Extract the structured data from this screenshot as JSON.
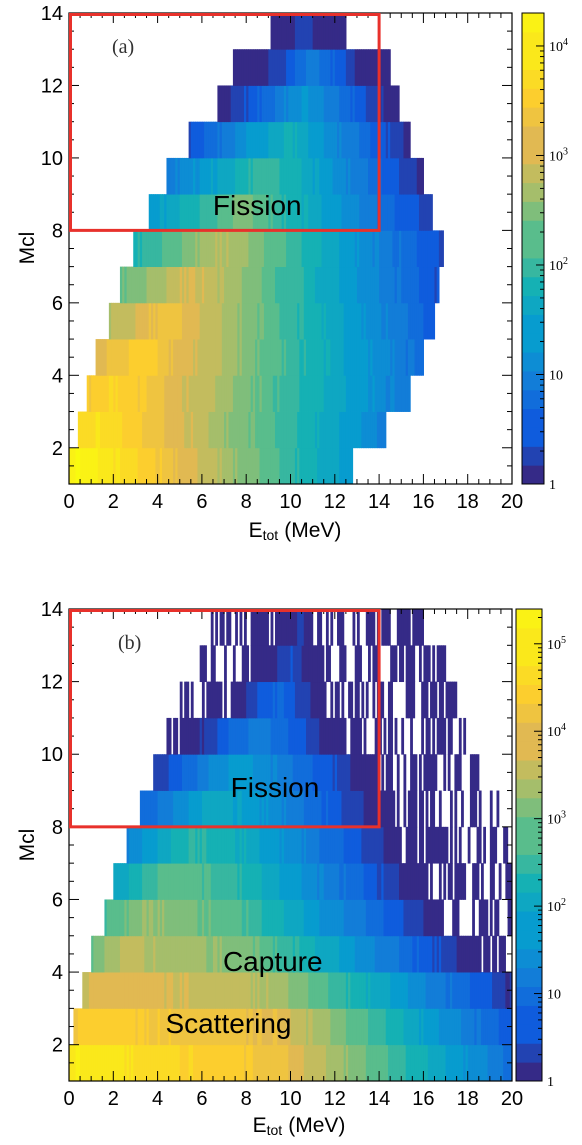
{
  "chart_data": [
    {
      "type": "heatmap",
      "panel_label": "(a)",
      "xlabel": "E",
      "xlabel_sub": "tot",
      "xlabel_unit": "(MeV)",
      "ylabel": "Mcl",
      "xlim": [
        0,
        20
      ],
      "ylim": [
        1,
        14
      ],
      "x_ticks": [
        "0",
        "2",
        "4",
        "6",
        "8",
        "10",
        "12",
        "14",
        "16",
        "18",
        "20"
      ],
      "y_ticks": [
        "2",
        "4",
        "6",
        "8",
        "10",
        "12",
        "14"
      ],
      "z_scale": "log",
      "z_range": [
        1,
        20000
      ],
      "colorbar_ticks": [
        "1",
        "10",
        "10^2",
        "10^3",
        "10^4"
      ],
      "annotations": [
        {
          "text": "Fission",
          "x": 8.5,
          "y": 8.7
        }
      ],
      "selection_box": {
        "x": [
          0,
          14
        ],
        "y": [
          8,
          14
        ],
        "color": "#e8312b"
      },
      "rows": [
        {
          "mcl": 1,
          "x_start": 0.0,
          "x_end": 12.8,
          "log_peak": 4.3,
          "peak_x": 0.4,
          "decay": 0.24
        },
        {
          "mcl": 2,
          "x_start": 0.4,
          "x_end": 14.3,
          "log_peak": 3.9,
          "peak_x": 1.2,
          "decay": 0.22
        },
        {
          "mcl": 3,
          "x_start": 0.8,
          "x_end": 15.4,
          "log_peak": 3.7,
          "peak_x": 2.0,
          "decay": 0.21
        },
        {
          "mcl": 4,
          "x_start": 1.2,
          "x_end": 16.0,
          "log_peak": 3.55,
          "peak_x": 3.2,
          "decay": 0.22
        },
        {
          "mcl": 5,
          "x_start": 1.8,
          "x_end": 16.5,
          "log_peak": 3.35,
          "peak_x": 4.3,
          "decay": 0.23
        },
        {
          "mcl": 6,
          "x_start": 2.3,
          "x_end": 16.7,
          "log_peak": 3.1,
          "peak_x": 5.5,
          "decay": 0.24
        },
        {
          "mcl": 7,
          "x_start": 2.9,
          "x_end": 16.9,
          "log_peak": 2.85,
          "peak_x": 6.8,
          "decay": 0.25
        },
        {
          "mcl": 8,
          "x_start": 3.6,
          "x_end": 16.4,
          "log_peak": 2.45,
          "peak_x": 7.8,
          "decay": 0.26
        },
        {
          "mcl": 9,
          "x_start": 4.4,
          "x_end": 16.0,
          "log_peak": 2.15,
          "peak_x": 8.8,
          "decay": 0.28
        },
        {
          "mcl": 10,
          "x_start": 5.4,
          "x_end": 15.4,
          "log_peak": 1.8,
          "peak_x": 9.8,
          "decay": 0.3
        },
        {
          "mcl": 11,
          "x_start": 6.7,
          "x_end": 14.9,
          "log_peak": 1.35,
          "peak_x": 10.6,
          "decay": 0.34
        },
        {
          "mcl": 12,
          "x_start": 7.4,
          "x_end": 14.5,
          "log_peak": 0.95,
          "peak_x": 11.0,
          "decay": 0.38
        },
        {
          "mcl": 13,
          "x_start": 9.1,
          "x_end": 12.5,
          "log_peak": 0.4,
          "peak_x": 10.5,
          "decay": 0.4
        }
      ]
    },
    {
      "type": "heatmap",
      "panel_label": "(b)",
      "xlabel": "E",
      "xlabel_sub": "tot",
      "xlabel_unit": "(MeV)",
      "ylabel": "Mcl",
      "xlim": [
        0,
        20
      ],
      "ylim": [
        1,
        14
      ],
      "x_ticks": [
        "0",
        "2",
        "4",
        "6",
        "8",
        "10",
        "12",
        "14",
        "16",
        "18",
        "20"
      ],
      "y_ticks": [
        "2",
        "4",
        "6",
        "8",
        "10",
        "12",
        "14"
      ],
      "z_scale": "log",
      "z_range": [
        1,
        250000
      ],
      "colorbar_ticks": [
        "1",
        "10",
        "10^2",
        "10^3",
        "10^4",
        "10^5"
      ],
      "annotations": [
        {
          "text": "Fission",
          "x": 9.3,
          "y": 9.1
        },
        {
          "text": "Capture",
          "x": 9.2,
          "y": 4.3
        },
        {
          "text": "Scattering",
          "x": 7.2,
          "y": 2.6
        }
      ],
      "selection_box": {
        "x": [
          0,
          14
        ],
        "y": [
          8,
          14
        ],
        "color": "#e8312b"
      },
      "rows": [
        {
          "mcl": 1,
          "x_start": 0.0,
          "x_end": 20.0,
          "log_peak": 5.1,
          "peak_x": 0.3,
          "plateau_end": 9.3,
          "plateau_drop": 0.9,
          "decay": 0.3
        },
        {
          "mcl": 2,
          "x_start": 0.2,
          "x_end": 20.0,
          "log_peak": 4.5,
          "peak_x": 0.8,
          "plateau_end": 9.3,
          "plateau_drop": 0.5,
          "decay": 0.32
        },
        {
          "mcl": 3,
          "x_start": 0.6,
          "x_end": 20.0,
          "log_peak": 4.0,
          "peak_x": 1.5,
          "plateau_end": 9.0,
          "plateau_drop": 0.5,
          "decay": 0.3
        },
        {
          "mcl": 4,
          "x_start": 1.0,
          "x_end": 20.0,
          "log_peak": 3.6,
          "peak_x": 2.5,
          "plateau_end": 8.0,
          "plateau_drop": 0.5,
          "decay": 0.3
        },
        {
          "mcl": 5,
          "x_start": 1.6,
          "x_end": 20.0,
          "log_peak": 3.3,
          "peak_x": 3.3,
          "plateau_end": 7.5,
          "plateau_drop": 0.5,
          "decay": 0.3
        },
        {
          "mcl": 6,
          "x_start": 2.0,
          "x_end": 20.0,
          "log_peak": 2.9,
          "peak_x": 4.5,
          "plateau_end": 7.5,
          "plateau_drop": 0.4,
          "decay": 0.3
        },
        {
          "mcl": 7,
          "x_start": 2.6,
          "x_end": 20.0,
          "log_peak": 2.5,
          "peak_x": 5.5,
          "plateau_end": 8.0,
          "plateau_drop": 0.4,
          "decay": 0.3
        },
        {
          "mcl": 8,
          "x_start": 3.2,
          "x_end": 19.5,
          "log_peak": 2.1,
          "peak_x": 6.5,
          "plateau_end": 8.5,
          "plateau_drop": 0.4,
          "decay": 0.3
        },
        {
          "mcl": 9,
          "x_start": 3.8,
          "x_end": 18.5,
          "log_peak": 1.8,
          "peak_x": 7.5,
          "plateau_end": 9.0,
          "plateau_drop": 0.4,
          "decay": 0.3
        },
        {
          "mcl": 10,
          "x_start": 4.4,
          "x_end": 18.0,
          "log_peak": 1.3,
          "peak_x": 8.5,
          "plateau_end": 9.5,
          "plateau_drop": 0.4,
          "decay": 0.35
        },
        {
          "mcl": 11,
          "x_start": 5.0,
          "x_end": 17.5,
          "log_peak": 0.9,
          "peak_x": 9.5,
          "plateau_end": 10.0,
          "plateau_drop": 0.3,
          "decay": 0.4
        },
        {
          "mcl": 12,
          "x_start": 5.6,
          "x_end": 17.0,
          "log_peak": 0.6,
          "peak_x": 10.0,
          "plateau_end": 10.5,
          "plateau_drop": 0.3,
          "decay": 0.4
        },
        {
          "mcl": 13,
          "x_start": 6.4,
          "x_end": 16.0,
          "log_peak": 0.35,
          "peak_x": 10.5,
          "plateau_end": 10.5,
          "plateau_drop": 0.2,
          "decay": 0.45
        }
      ]
    }
  ]
}
